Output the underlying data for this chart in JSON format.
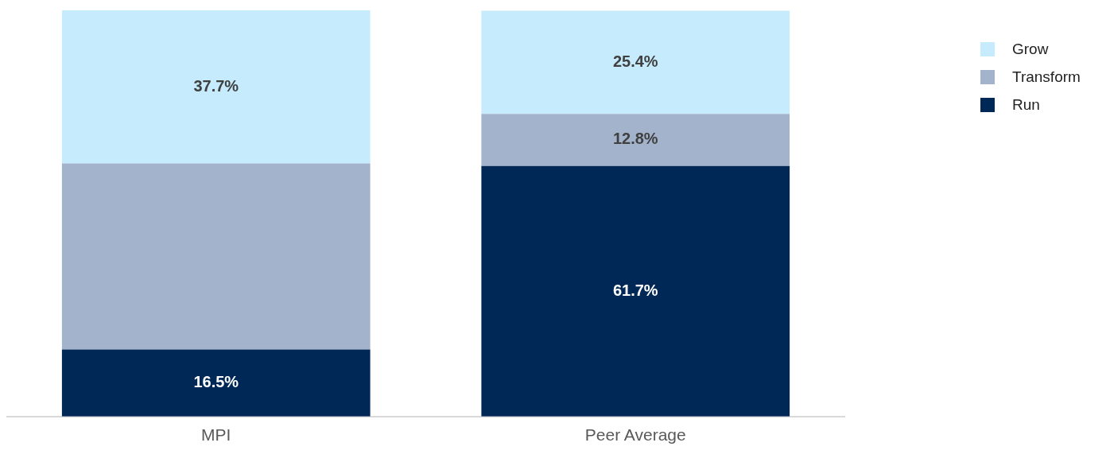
{
  "chart_data": {
    "type": "bar",
    "stacked": true,
    "categories": [
      "MPI",
      "Peer Average"
    ],
    "series": [
      {
        "name": "Run",
        "color": "#002856",
        "values": [
          16.5,
          61.7
        ],
        "value_labels": [
          "16.5%",
          "61.7%"
        ]
      },
      {
        "name": "Transform",
        "color": "#a2b3cb",
        "values": [
          45.8,
          12.8
        ],
        "value_labels": [
          null,
          "12.8%"
        ]
      },
      {
        "name": "Grow",
        "color": "#c5ebfd",
        "values": [
          37.7,
          25.4
        ],
        "value_labels": [
          "37.7%",
          "25.4%"
        ]
      }
    ],
    "ylim": [
      0,
      100
    ],
    "tick_labels": "x",
    "grid": false,
    "legend": "top right"
  }
}
